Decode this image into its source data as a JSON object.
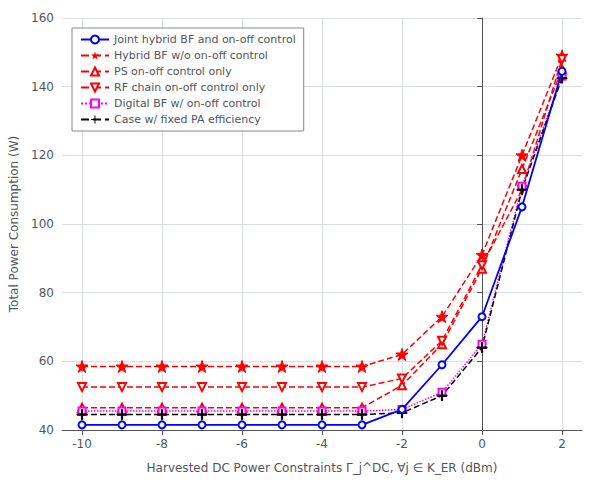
{
  "chart_data": {
    "type": "line",
    "x": [
      -10,
      -9,
      -8,
      -7,
      -6,
      -5,
      -4,
      -3,
      -2,
      -1,
      0,
      1,
      2
    ],
    "series": [
      {
        "name": "Joint hybrid BF and on-off control",
        "color": "#0000ff",
        "marker": "circle",
        "line_style": "solid",
        "values": [
          41.5,
          41.5,
          41.5,
          41.5,
          41.5,
          41.5,
          41.5,
          41.5,
          46.0,
          59.0,
          73.0,
          105.0,
          144.5
        ]
      },
      {
        "name": "Hybrid BF w/o on-off control",
        "color": "#ff0000",
        "marker": "star",
        "line_style": "dashed",
        "values": [
          58.5,
          58.5,
          58.5,
          58.5,
          58.5,
          58.5,
          58.5,
          58.5,
          62.0,
          73.0,
          91.0,
          120.0,
          149.0
        ]
      },
      {
        "name": "PS on-off control only",
        "color": "#ff0000",
        "marker": "triangle-up",
        "line_style": "dashed",
        "values": [
          46.5,
          46.5,
          46.5,
          46.5,
          46.5,
          46.5,
          46.5,
          46.5,
          53.0,
          65.0,
          87.0,
          116.0,
          145.0
        ]
      },
      {
        "name": "RF chain on-off control only",
        "color": "#ff0000",
        "marker": "triangle-down",
        "line_style": "dashed",
        "values": [
          52.5,
          52.5,
          52.5,
          52.5,
          52.5,
          52.5,
          52.5,
          52.5,
          55.0,
          66.0,
          88.0,
          110.0,
          148.0
        ]
      },
      {
        "name": "Digital BF w/ on-off control",
        "color": "#ff00ff",
        "marker": "square",
        "line_style": "dotted",
        "values": [
          45.5,
          45.5,
          45.5,
          45.5,
          45.5,
          45.5,
          45.5,
          45.5,
          46.0,
          51.0,
          65.0,
          111.0,
          143.0
        ]
      },
      {
        "name": "Case w/ fixed PA efficiency",
        "color": "#000000",
        "marker": "plus",
        "line_style": "dashed",
        "values": [
          44.5,
          44.5,
          44.5,
          44.5,
          44.5,
          44.5,
          44.5,
          44.5,
          45.0,
          50.0,
          64.0,
          110.0,
          142.5
        ]
      }
    ],
    "xlim": [
      -10.5,
      2.5
    ],
    "ylim": [
      40,
      160
    ],
    "xticks": [
      -10,
      -8,
      -6,
      -4,
      -2,
      0,
      2
    ],
    "yticks": [
      40,
      60,
      80,
      100,
      120,
      140,
      160
    ],
    "xlabel": "Harvested DC Power Constraints Γ_j^DC, ∀j ∈ K_ER (dBm)",
    "ylabel": "Total Power Consumption (W)",
    "grid": true,
    "legend": "upper left"
  }
}
